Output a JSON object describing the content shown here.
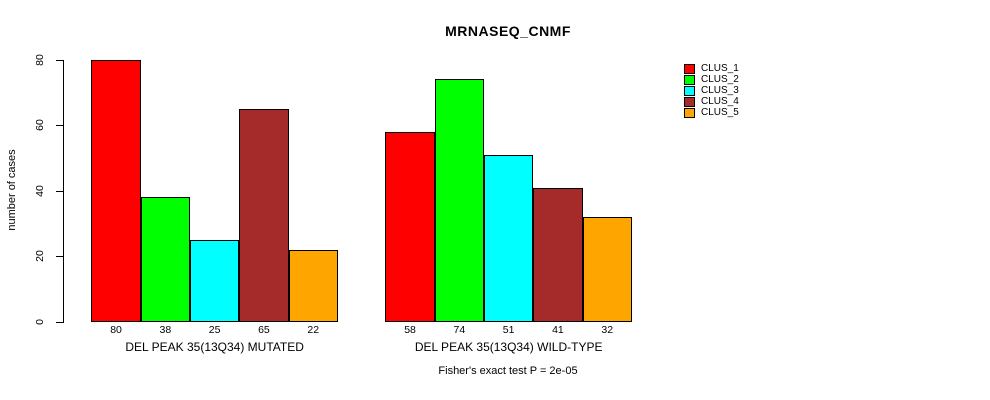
{
  "chart_data": {
    "type": "bar",
    "title": "MRNASEQ_CNMF",
    "ylabel": "number of cases",
    "xlabel": "",
    "categories": [
      "DEL PEAK 35(13Q34) MUTATED",
      "DEL PEAK 35(13Q34) WILD-TYPE"
    ],
    "series": [
      {
        "name": "CLUS_1",
        "color": "#FF0000",
        "values": [
          80,
          58
        ]
      },
      {
        "name": "CLUS_2",
        "color": "#00FF00",
        "values": [
          38,
          74
        ]
      },
      {
        "name": "CLUS_3",
        "color": "#00FFFF",
        "values": [
          25,
          51
        ]
      },
      {
        "name": "CLUS_4",
        "color": "#A52A2A",
        "values": [
          65,
          41
        ]
      },
      {
        "name": "CLUS_5",
        "color": "#FFA500",
        "values": [
          22,
          32
        ]
      }
    ],
    "yticks": [
      0,
      20,
      40,
      60,
      80
    ],
    "ylim": [
      0,
      80
    ],
    "bar_value_labels_shown": true,
    "legend_entries": [
      "CLUS_1",
      "CLUS_2",
      "CLUS_3",
      "CLUS_4",
      "CLUS_5"
    ],
    "legend_position": "top-right",
    "grid": false,
    "annotation": "Fisher's exact test P = 2e-05"
  }
}
